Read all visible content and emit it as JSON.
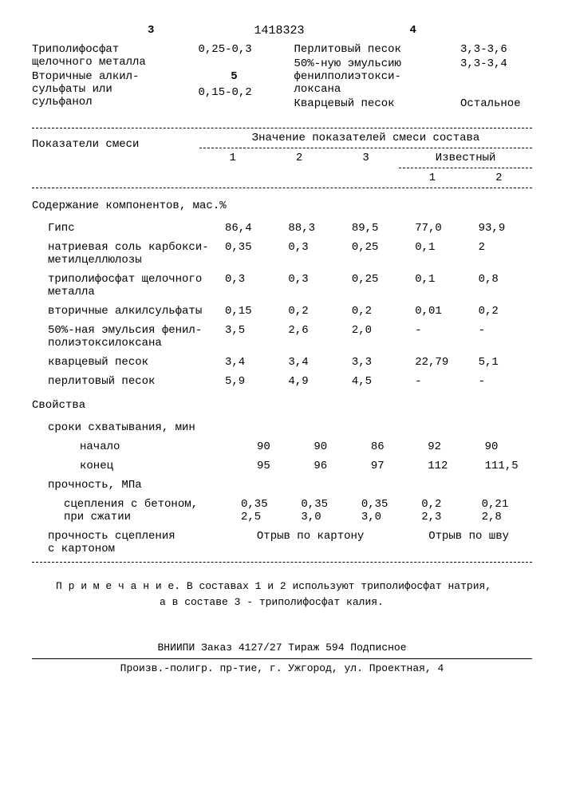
{
  "patent_number": "1418323",
  "top": {
    "col3_num": "3",
    "col4_num": "4",
    "col5_num": "5",
    "left": [
      {
        "name": "Триполифосфат\nщелочного металла",
        "val": "0,25-0,3"
      },
      {
        "name": "Вторичные алкил-\nсульфаты или\nсульфанол",
        "val": "0,15-0,2"
      }
    ],
    "right": [
      {
        "name": "Перлитовый песок",
        "val": "3,3-3,6"
      },
      {
        "name": "50%-ную эмульсию\nфенилполиэтокси-\nлоксана",
        "val": "3,3-3,4"
      },
      {
        "name": "Кварцевый песок",
        "val": "Остальное"
      }
    ]
  },
  "table": {
    "param_label": "Показатели  смеси",
    "values_title": "Значение показателей смеси состава",
    "cols": [
      "1",
      "2",
      "3"
    ],
    "known_label": "Известный",
    "known_cols": [
      "1",
      "2"
    ],
    "section1": "Содержание компонентов, мас.%",
    "rows": [
      {
        "label": "Гипс",
        "indent": 1,
        "v": [
          "86,4",
          "88,3",
          "89,5",
          "77,0",
          "93,9"
        ]
      },
      {
        "label": "натриевая соль  карбокси-\nметилцеллюлозы",
        "indent": 1,
        "v": [
          "0,35",
          "0,3",
          "0,25",
          "0,1",
          "2"
        ]
      },
      {
        "label": "триполифосфат щелочного\nметалла",
        "indent": 1,
        "v": [
          "0,3",
          "0,3",
          "0,25",
          "0,1",
          "0,8"
        ]
      },
      {
        "label": "вторичные алкилсульфаты",
        "indent": 1,
        "v": [
          "0,15",
          "0,2",
          "0,2",
          "0,01",
          "0,2"
        ]
      },
      {
        "label": "50%-ная эмульсия фенил-\nполиэтоксилоксана",
        "indent": 1,
        "v": [
          "3,5",
          "2,6",
          "2,0",
          "-",
          "-"
        ]
      },
      {
        "label": "кварцевый  песок",
        "indent": 1,
        "v": [
          "3,4",
          "3,4",
          "3,3",
          "22,79",
          "5,1"
        ]
      },
      {
        "label": "перлитовый песок",
        "indent": 1,
        "v": [
          "5,9",
          "4,9",
          "4,5",
          "-",
          "-"
        ]
      }
    ],
    "section2": "Свойства",
    "rows2": [
      {
        "label": "сроки схватывания, мин",
        "indent": 1,
        "v": null
      },
      {
        "label": "начало",
        "indent": 3,
        "v": [
          "90",
          "90",
          "86",
          "92",
          "90"
        ]
      },
      {
        "label": "конец",
        "indent": 3,
        "v": [
          "95",
          "96",
          "97",
          "112",
          "111,5"
        ]
      },
      {
        "label": "прочность, МПа",
        "indent": 1,
        "v": null
      },
      {
        "label": "сцепления с бетоном,\nпри сжатии",
        "indent": 2,
        "v": [
          "0,35\n2,5",
          "0,35\n3,0",
          "0,35\n3,0",
          "0,2\n2,3",
          "0,21\n2,8"
        ]
      }
    ],
    "last_row": {
      "label": "прочность сцепления\nс  картоном",
      "merged1": "Отрыв по картону",
      "merged2": "Отрыв по шву"
    }
  },
  "note": {
    "prefix": "П р и м е ч а н и е.",
    "line1": "В составах 1 и 2 используют триполифосфат  натрия,",
    "line2": "а в составе 3 - триполифосфат калия."
  },
  "footer": {
    "line1": "ВНИИПИ   Заказ 4127/27   Тираж 594    Подписное",
    "line2": "Произв.-полигр. пр-тие, г. Ужгород, ул. Проектная, 4"
  }
}
